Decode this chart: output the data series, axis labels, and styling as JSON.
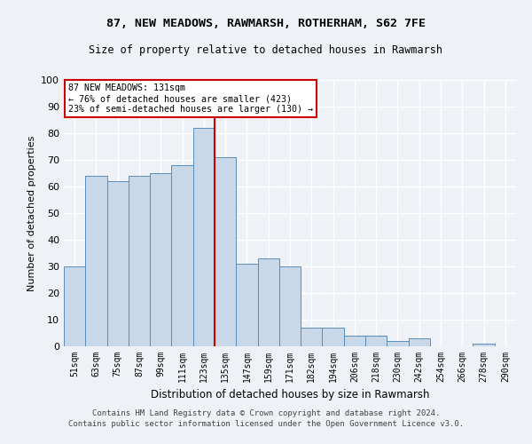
{
  "title1": "87, NEW MEADOWS, RAWMARSH, ROTHERHAM, S62 7FE",
  "title2": "Size of property relative to detached houses in Rawmarsh",
  "xlabel": "Distribution of detached houses by size in Rawmarsh",
  "ylabel": "Number of detached properties",
  "categories": [
    "51sqm",
    "63sqm",
    "75sqm",
    "87sqm",
    "99sqm",
    "111sqm",
    "123sqm",
    "135sqm",
    "147sqm",
    "159sqm",
    "171sqm",
    "182sqm",
    "194sqm",
    "206sqm",
    "218sqm",
    "230sqm",
    "242sqm",
    "254sqm",
    "266sqm",
    "278sqm",
    "290sqm"
  ],
  "values": [
    30,
    64,
    62,
    64,
    65,
    68,
    82,
    71,
    31,
    33,
    30,
    7,
    7,
    4,
    4,
    2,
    3,
    0,
    0,
    1,
    0
  ],
  "bar_color": "#c8d8e8",
  "bar_edge_color": "#5b8db8",
  "vline_index": 7,
  "marker_label": "87 NEW MEADOWS: 131sqm",
  "annotation_line1": "← 76% of detached houses are smaller (423)",
  "annotation_line2": "23% of semi-detached houses are larger (130) →",
  "vline_color": "#cc0000",
  "box_edge_color": "#cc0000",
  "ylim": [
    0,
    100
  ],
  "yticks": [
    0,
    10,
    20,
    30,
    40,
    50,
    60,
    70,
    80,
    90,
    100
  ],
  "background_color": "#eef2f7",
  "grid_color": "#ffffff",
  "footer1": "Contains HM Land Registry data © Crown copyright and database right 2024.",
  "footer2": "Contains public sector information licensed under the Open Government Licence v3.0."
}
